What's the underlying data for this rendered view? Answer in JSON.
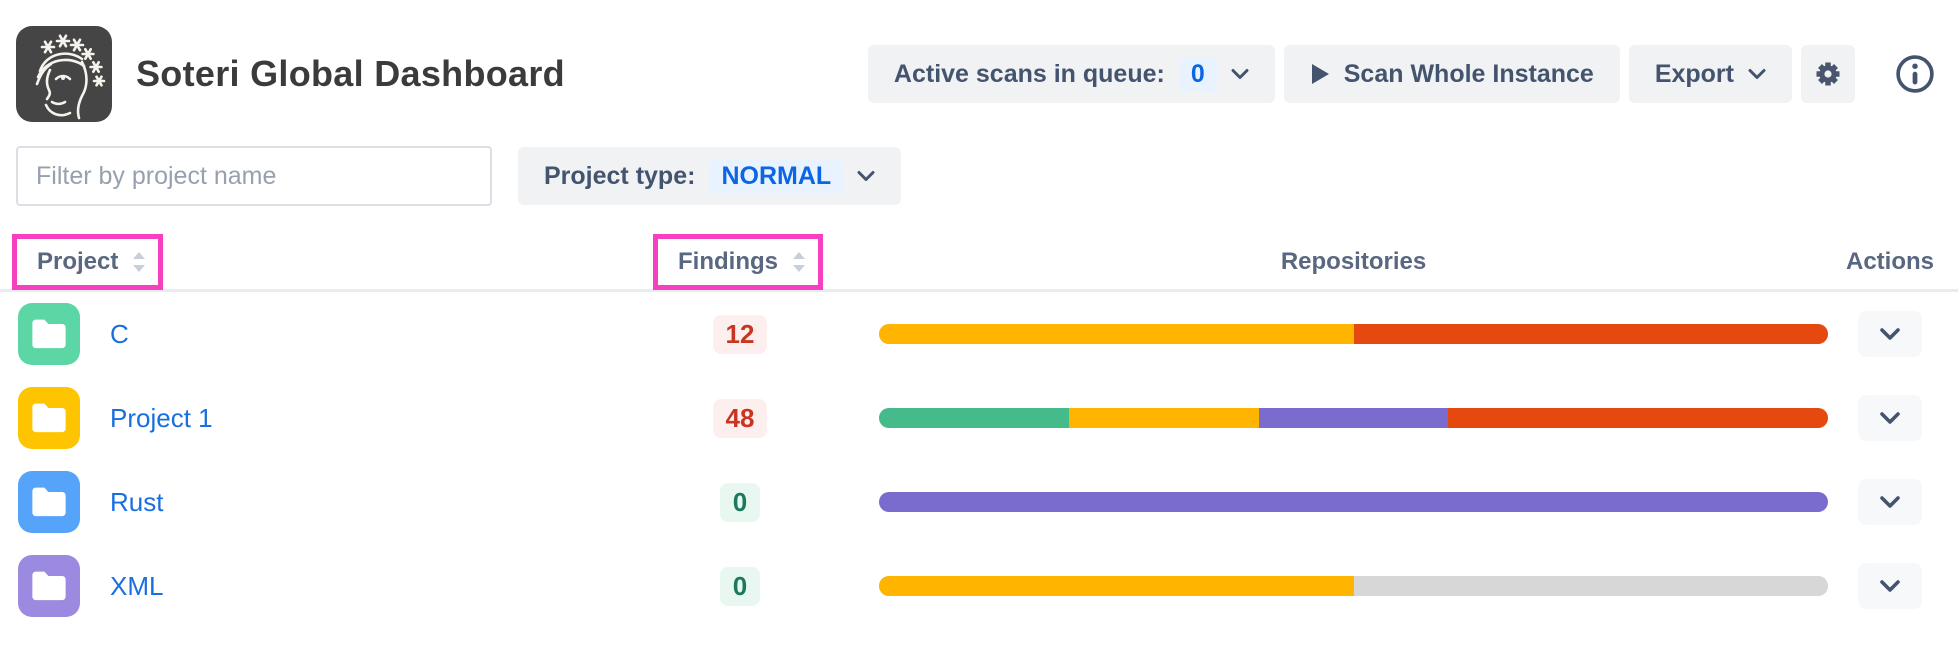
{
  "header": {
    "title": "Soteri Global Dashboard",
    "active_scans_label": "Active scans in queue:",
    "active_scans_count": "0",
    "scan_button_label": "Scan Whole Instance",
    "export_label": "Export"
  },
  "filters": {
    "search_placeholder": "Filter by project name",
    "project_type_label": "Project type:",
    "project_type_value": "NORMAL"
  },
  "table": {
    "columns": {
      "project": "Project",
      "findings": "Findings",
      "repositories": "Repositories",
      "actions": "Actions"
    },
    "rows": [
      {
        "name": "C",
        "findings": "12",
        "findings_status": "alert",
        "folder_color": "#5CD6A4",
        "segments": [
          {
            "color": "#FFB400",
            "pct": 50
          },
          {
            "color": "#E5490F",
            "pct": 50
          }
        ]
      },
      {
        "name": "Project 1",
        "findings": "48",
        "findings_status": "alert",
        "folder_color": "#FFC400",
        "segments": [
          {
            "color": "#45BB8B",
            "pct": 20
          },
          {
            "color": "#FFB400",
            "pct": 20
          },
          {
            "color": "#7A6BCE",
            "pct": 20
          },
          {
            "color": "#E5490F",
            "pct": 40
          }
        ]
      },
      {
        "name": "Rust",
        "findings": "0",
        "findings_status": "ok",
        "folder_color": "#55A4F9",
        "segments": [
          {
            "color": "#7A6BCE",
            "pct": 100
          }
        ]
      },
      {
        "name": "XML",
        "findings": "0",
        "findings_status": "ok",
        "folder_color": "#9B8AE0",
        "segments": [
          {
            "color": "#FFB400",
            "pct": 50
          },
          {
            "color": "#D7D7D7",
            "pct": 50
          }
        ]
      }
    ]
  },
  "annotations": {
    "highlighted_headers": [
      "Project",
      "Findings"
    ],
    "highlight_color": "#F640BF"
  },
  "colors": {
    "accent_blue": "#0C66E4",
    "link_blue": "#1A6FE0",
    "slate_text": "#44546F",
    "button_bg": "#F1F2F4",
    "alert_text": "#CA3521",
    "alert_bg": "#FCEFED",
    "ok_text": "#1B7A5E",
    "ok_bg": "#E8F7F0",
    "bar_yellow": "#FFB400",
    "bar_red": "#E5490F",
    "bar_green": "#45BB8B",
    "bar_purple": "#7A6BCE",
    "bar_gray": "#D7D7D7",
    "logo_bg": "#454545"
  },
  "icons": {
    "logo": "soteri-face-with-stars",
    "queue_dropdown": "chevron-down",
    "scan": "play",
    "export_dropdown": "chevron-down",
    "settings": "gear",
    "help": "info-circle",
    "project_avatar": "folder",
    "column_sort": "sort-arrows",
    "row_actions": "chevron-down"
  }
}
